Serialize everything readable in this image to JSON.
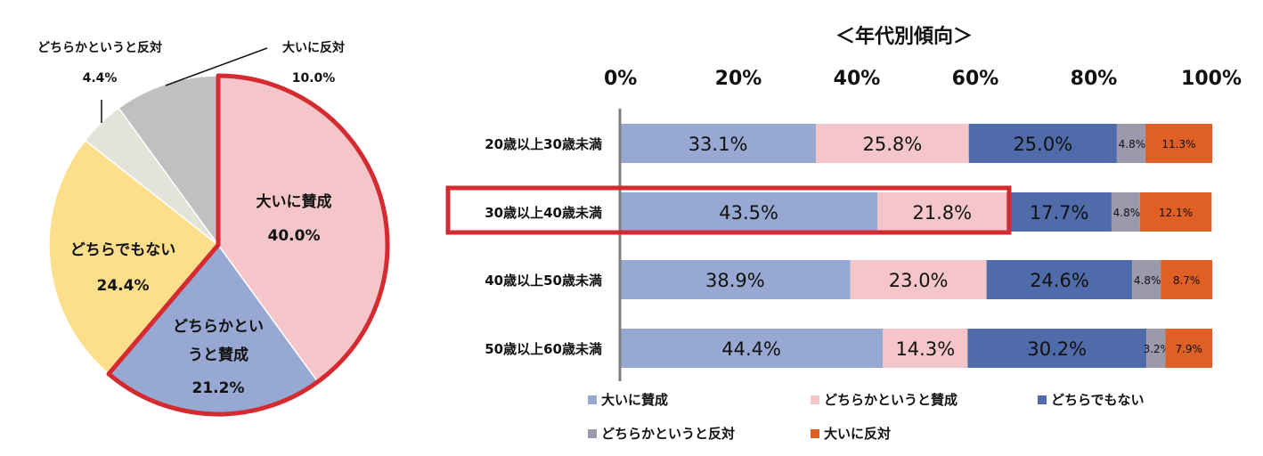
{
  "colors": {
    "strongly_agree": "#97a8d2",
    "somewhat_agree": "#f5c6c9",
    "neutral_pie": "#fddf8b",
    "neutral_bar": "#4f6baa",
    "somewhat_disagree_pie": "#e3e3d9",
    "somewhat_disagree_bar": "#9a9aac",
    "strongly_disagree_pie": "#c0c0c0",
    "strongly_disagree_bar": "#df5f25",
    "highlight": "#d42a30"
  },
  "chart_data": [
    {
      "type": "pie",
      "slices": [
        {
          "name": "大いに賛成",
          "label_lines": [
            "大いに賛成"
          ],
          "value": 40.0,
          "display": "40.0%"
        },
        {
          "name": "どちらかというと賛成",
          "label_lines": [
            "どちらかとい",
            "うと賛成"
          ],
          "value": 21.2,
          "display": "21.2%"
        },
        {
          "name": "どちらでもない",
          "label_lines": [
            "どちらでもない"
          ],
          "value": 24.4,
          "display": "24.4%"
        },
        {
          "name": "どちらかというと反対",
          "label_lines": [
            "どちらかというと反対"
          ],
          "value": 4.4,
          "display": "4.4%"
        },
        {
          "name": "大いに反対",
          "label_lines": [
            "大いに反対"
          ],
          "value": 10.0,
          "display": "10.0%"
        }
      ]
    },
    {
      "type": "bar",
      "orientation": "horizontal",
      "stacked": "percent",
      "title": "＜年代別傾向＞",
      "xlim": [
        0,
        100
      ],
      "x_ticks": [
        "0%",
        "20%",
        "40%",
        "60%",
        "80%",
        "100%"
      ],
      "categories": [
        "20歳以上30歳未満",
        "30歳以上40歳未満",
        "40歳以上50歳未満",
        "50歳以上60歳未満"
      ],
      "highlight_category": "30歳以上40歳未満",
      "series": [
        {
          "name": "大いに賛成",
          "values": [
            33.1,
            43.5,
            38.9,
            44.4
          ]
        },
        {
          "name": "どちらかというと賛成",
          "values": [
            25.8,
            21.8,
            23.0,
            14.3
          ]
        },
        {
          "name": "どちらでもない",
          "values": [
            25.0,
            17.7,
            24.6,
            30.2
          ]
        },
        {
          "name": "どちらかというと反対",
          "values": [
            4.8,
            4.8,
            4.8,
            3.2
          ]
        },
        {
          "name": "大いに反対",
          "values": [
            11.3,
            12.1,
            8.7,
            7.9
          ]
        }
      ],
      "legend": {
        "position": "bottom",
        "columns": 3
      }
    }
  ]
}
